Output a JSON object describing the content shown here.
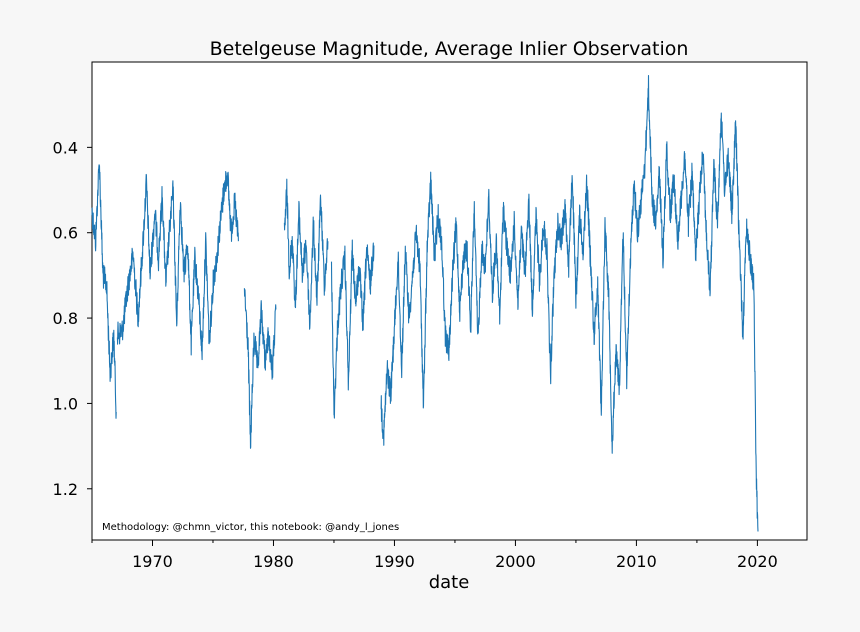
{
  "chart_data": {
    "type": "line",
    "title": "Betelgeuse Magnitude, Average Inlier Observation",
    "xlabel": "date",
    "ylabel": "",
    "xlim": [
      1965.0,
      2024.1
    ],
    "ylim": [
      1.32,
      0.2
    ],
    "y_inverted": true,
    "x_ticks": [
      1970,
      1980,
      1990,
      2000,
      2010,
      2020
    ],
    "x_tick_labels": [
      "1970",
      "1980",
      "1990",
      "2000",
      "2010",
      "2020"
    ],
    "y_ticks": [
      0.4,
      0.6,
      0.8,
      1.0,
      1.2
    ],
    "y_tick_labels": [
      "0.4",
      "0.6",
      "0.8",
      "1.0",
      "1.2"
    ],
    "annotation": "Methodology: @chmn_victor, this notebook: @andy_l_jones",
    "series": [
      {
        "name": "Average Inlier Observation",
        "color": "#1f77b4",
        "segments": [
          {
            "x": [
              1965.0,
              1965.3,
              1965.6,
              1965.9,
              1966.2,
              1966.5,
              1966.8,
              1967.0
            ],
            "y": [
              0.55,
              0.62,
              0.43,
              0.7,
              0.72,
              0.93,
              0.84,
              1.02
            ]
          },
          {
            "x": [
              1967.1,
              1967.5,
              1968.0,
              1968.4,
              1968.8,
              1969.2,
              1969.5,
              1969.8,
              1970.2,
              1970.5,
              1970.8,
              1971.1,
              1971.4,
              1971.7,
              1972.0,
              1972.3,
              1972.6,
              1972.9,
              1973.2,
              1973.5,
              1973.8,
              1974.1,
              1974.4,
              1974.7,
              1975.0,
              1975.3,
              1975.6,
              1975.9,
              1976.2,
              1976.5,
              1976.8,
              1977.1
            ],
            "y": [
              0.84,
              0.83,
              0.72,
              0.65,
              0.8,
              0.63,
              0.48,
              0.7,
              0.55,
              0.66,
              0.51,
              0.72,
              0.6,
              0.5,
              0.82,
              0.52,
              0.7,
              0.62,
              0.86,
              0.66,
              0.75,
              0.88,
              0.62,
              0.86,
              0.72,
              0.66,
              0.58,
              0.5,
              0.46,
              0.6,
              0.53,
              0.62
            ]
          },
          {
            "x": [
              1977.6,
              1977.9,
              1978.1,
              1978.4,
              1978.7,
              1979.0,
              1979.3,
              1979.6,
              1979.9,
              1980.2
            ],
            "y": [
              0.73,
              0.87,
              1.1,
              0.84,
              0.92,
              0.78,
              0.9,
              0.84,
              0.93,
              0.78
            ]
          },
          {
            "x": [
              1980.9,
              1981.1,
              1981.3,
              1981.6,
              1981.8,
              1982.1,
              1982.4,
              1982.7,
              1983.0,
              1983.3,
              1983.6,
              1983.9,
              1984.2,
              1984.5
            ],
            "y": [
              0.6,
              0.5,
              0.68,
              0.62,
              0.78,
              0.55,
              0.7,
              0.62,
              0.82,
              0.58,
              0.76,
              0.52,
              0.72,
              0.62
            ]
          },
          {
            "x": [
              1984.8,
              1985.0,
              1985.3,
              1985.6,
              1985.9,
              1986.2,
              1986.5,
              1986.8,
              1987.1,
              1987.4,
              1987.7,
              1988.0,
              1988.3
            ],
            "y": [
              0.68,
              1.03,
              0.82,
              0.72,
              0.66,
              0.96,
              0.64,
              0.76,
              0.68,
              0.82,
              0.64,
              0.72,
              0.63
            ]
          },
          {
            "x": [
              1988.9,
              1989.1,
              1989.4,
              1989.7,
              1990.0,
              1990.3,
              1990.6,
              1990.9,
              1991.2,
              1991.5,
              1991.8,
              1992.1,
              1992.4,
              1992.7,
              1993.0,
              1993.3,
              1993.6,
              1993.9,
              1994.2,
              1994.5,
              1994.8,
              1995.1,
              1995.4,
              1995.7,
              1996.0,
              1996.3,
              1996.6,
              1996.9,
              1997.2,
              1997.5,
              1997.8,
              1998.1,
              1998.4,
              1998.7,
              1999.0,
              1999.3,
              1999.6,
              1999.9,
              2000.2,
              2000.5,
              2000.8,
              2001.1,
              2001.4,
              2001.7,
              2002.0,
              2002.3,
              2002.6,
              2002.9,
              2003.2,
              2003.5,
              2003.8,
              2004.1,
              2004.4,
              2004.7,
              2005.0,
              2005.3,
              2005.6,
              2005.9,
              2006.2,
              2006.5,
              2006.8,
              2007.1,
              2007.4,
              2007.7,
              2008.0,
              2008.3,
              2008.6,
              2008.9,
              2009.2,
              2009.5,
              2009.8,
              2010.1,
              2010.4,
              2010.7,
              2011.0,
              2011.3,
              2011.6,
              2011.9,
              2012.2,
              2012.5,
              2012.8,
              2013.1,
              2013.4,
              2013.7,
              2014.0,
              2014.3,
              2014.6,
              2014.9,
              2015.2,
              2015.5,
              2015.8,
              2016.1,
              2016.4,
              2016.7,
              2017.0,
              2017.3,
              2017.6,
              2017.9,
              2018.2,
              2018.5,
              2018.8,
              2019.1,
              2019.4,
              2019.7,
              2019.9,
              2020.05
            ],
            "y": [
              1.0,
              1.08,
              0.92,
              0.98,
              0.82,
              0.66,
              0.92,
              0.64,
              0.8,
              0.7,
              0.6,
              0.68,
              1.01,
              0.64,
              0.48,
              0.66,
              0.56,
              0.62,
              0.84,
              0.88,
              0.7,
              0.58,
              0.78,
              0.66,
              0.64,
              0.82,
              0.54,
              0.86,
              0.64,
              0.68,
              0.52,
              0.74,
              0.62,
              0.8,
              0.54,
              0.64,
              0.7,
              0.58,
              0.76,
              0.6,
              0.7,
              0.52,
              0.78,
              0.56,
              0.72,
              0.58,
              0.64,
              0.94,
              0.7,
              0.58,
              0.62,
              0.54,
              0.68,
              0.46,
              0.76,
              0.56,
              0.64,
              0.48,
              0.66,
              0.84,
              0.72,
              1.02,
              0.58,
              0.74,
              1.1,
              0.88,
              0.96,
              0.6,
              0.94,
              0.66,
              0.48,
              0.6,
              0.52,
              0.44,
              0.26,
              0.52,
              0.58,
              0.46,
              0.66,
              0.4,
              0.56,
              0.46,
              0.62,
              0.52,
              0.42,
              0.58,
              0.46,
              0.66,
              0.52,
              0.4,
              0.62,
              0.74,
              0.44,
              0.58,
              0.32,
              0.5,
              0.42,
              0.56,
              0.34,
              0.62,
              0.84,
              0.58,
              0.66,
              0.72,
              1.17,
              1.3
            ]
          }
        ]
      }
    ]
  }
}
